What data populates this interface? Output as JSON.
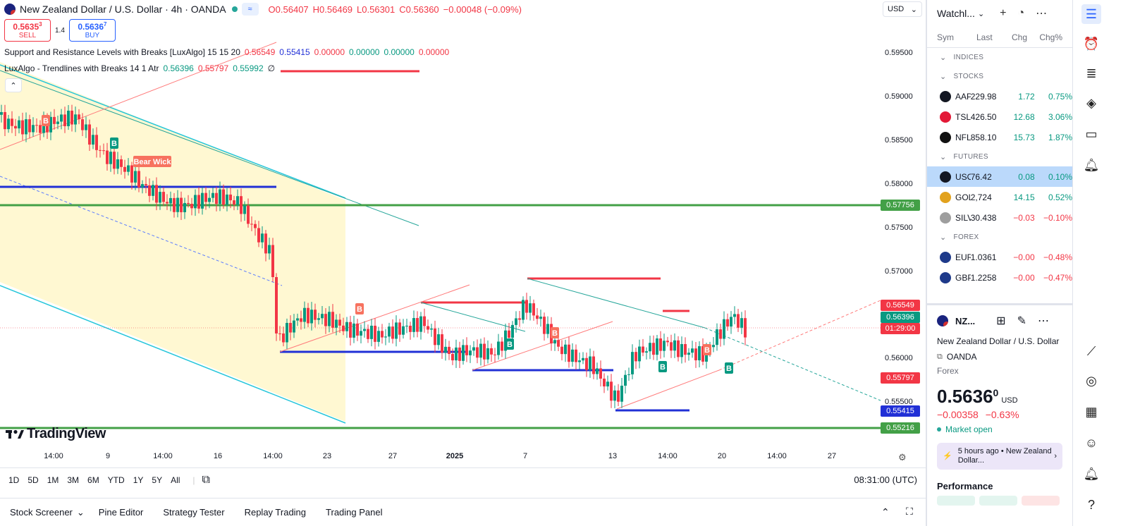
{
  "header": {
    "title": "New Zealand Dollar / U.S. Dollar · 4h · OANDA",
    "open": "O0.56407",
    "high": "H0.56469",
    "low": "L0.56301",
    "close": "C0.56360",
    "change": "−0.00048 (−0.09%)",
    "pill": "≈"
  },
  "trade": {
    "sell_price": "0.5635",
    "sell_sup": "3",
    "sell_label": "SELL",
    "spread": "1.4",
    "buy_price": "0.5636",
    "buy_sup": "7",
    "buy_label": "BUY"
  },
  "indicators": [
    {
      "name": "Support and Resistance Levels with Breaks [LuxAlgo] 15 15 20",
      "v1": "0.56549",
      "v2": "0.55415",
      "v3": "0.00000",
      "v4": "0.00000",
      "v5": "0.00000",
      "v6": "0.00000"
    },
    {
      "name": "LuxAlgo - Trendlines with Breaks 14 1 Atr",
      "v1": "0.56396",
      "v2": "0.55797",
      "v3": "0.55992",
      "v4": "∅"
    }
  ],
  "currency_select": "USD",
  "price_axis": [
    "0.59500",
    "0.59000",
    "0.58500",
    "0.58000",
    "0.57500",
    "0.57000",
    "0.56500",
    "0.56000",
    "0.55500"
  ],
  "price_labels": [
    {
      "text": "0.57756",
      "color": "#43a047"
    },
    {
      "text": "0.56549",
      "color": "#f23645"
    },
    {
      "text": "0.56396",
      "color": "#089981"
    },
    {
      "text": "01:29:00",
      "color": "#f23645"
    },
    {
      "text": "0.55797",
      "color": "#f23645"
    },
    {
      "text": "0.55415",
      "color": "#2130d6"
    },
    {
      "text": "0.55216",
      "color": "#43a047"
    }
  ],
  "time_axis": [
    "14:00",
    "9",
    "14:00",
    "16",
    "14:00",
    "23",
    "27",
    "2025",
    "7",
    "13",
    "14:00",
    "20",
    "14:00",
    "27"
  ],
  "chart_labels": {
    "bear_wick": "Bear Wick",
    "b": "B"
  },
  "logo": "TradingView",
  "ranges": [
    "1D",
    "5D",
    "1M",
    "3M",
    "6M",
    "YTD",
    "1Y",
    "5Y",
    "All"
  ],
  "clock": "08:31:00 (UTC)",
  "bottom_tabs": [
    "Stock Screener",
    "Pine Editor",
    "Strategy Tester",
    "Replay Trading",
    "Trading Panel"
  ],
  "watchlist": {
    "title": "Watchl...",
    "cols": {
      "sym": "Sym",
      "last": "Last",
      "chg": "Chg",
      "pct": "Chg%"
    },
    "sections": [
      {
        "name": "INDICES",
        "rows": []
      },
      {
        "name": "STOCKS",
        "rows": [
          {
            "sym": "AAPL",
            "last": "229.98",
            "chg": "1.72",
            "pct": "0.75%",
            "dir": "pos",
            "icon": "#131722"
          },
          {
            "sym": "TSLA",
            "last": "426.50",
            "chg": "12.68",
            "pct": "3.06%",
            "dir": "pos",
            "icon": "#e31937"
          },
          {
            "sym": "NFLX",
            "last": "858.10",
            "chg": "15.73",
            "pct": "1.87%",
            "dir": "pos",
            "icon": "#111"
          }
        ]
      },
      {
        "name": "FUTURES",
        "rows": [
          {
            "sym": "USOIL",
            "last": "76.42",
            "chg": "0.08",
            "pct": "0.10%",
            "dir": "pos",
            "icon": "#131722",
            "selected": true
          },
          {
            "sym": "GOLD",
            "last": "2,724",
            "chg": "14.15",
            "pct": "0.52%",
            "dir": "pos",
            "icon": "#e2a21d"
          },
          {
            "sym": "SILVER",
            "last": "30.438",
            "chg": "−0.03",
            "pct": "−0.10%",
            "dir": "neg",
            "icon": "#9e9e9e"
          }
        ]
      },
      {
        "name": "FOREX",
        "rows": [
          {
            "sym": "EURUSD",
            "last": "1.0361",
            "chg": "−0.00",
            "pct": "−0.48%",
            "dir": "neg",
            "icon": "#1e3a8a"
          },
          {
            "sym": "GBPUSD",
            "last": "1.2258",
            "chg": "−0.00",
            "pct": "−0.47%",
            "dir": "neg",
            "icon": "#1e3a8a"
          }
        ]
      }
    ]
  },
  "detail": {
    "sym": "NZ...",
    "name": "New Zealand Dollar / U.S. Dollar",
    "exchange": "OANDA",
    "type": "Forex",
    "price": "0.5636",
    "price_sup": "0",
    "currency": "USD",
    "change": "−0.00358",
    "pct": "−0.63%",
    "status": "Market open",
    "news_time": "5 hours ago",
    "news_text": "New Zealand Dollar...",
    "performance": "Performance"
  }
}
